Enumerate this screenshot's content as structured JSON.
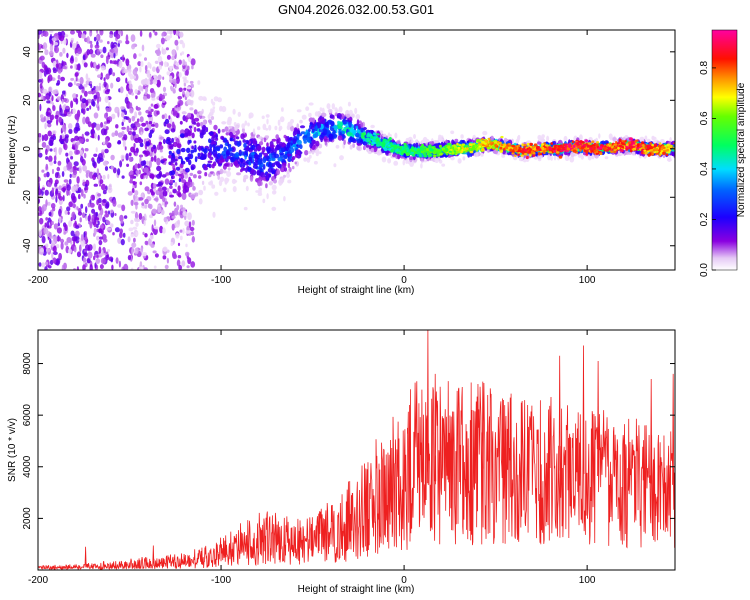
{
  "title": "GN04.2026.032.00.53.G01",
  "colors": {
    "snr_line": "#ee2020",
    "dots_dark": "#4a00d8",
    "dots_faint": "#c9a6f2"
  },
  "chart_data": [
    {
      "type": "heatmap",
      "xlabel": "Height of straight line (km)",
      "ylabel": "Frequency (Hz)",
      "xlim": [
        -200,
        148
      ],
      "ylim": [
        -50,
        49
      ],
      "x_ticks": [
        -200,
        -100,
        0,
        100
      ],
      "y_ticks": [
        -40,
        -20,
        0,
        20,
        40
      ],
      "x_tick_labels": [
        "-200",
        "-100",
        "0",
        "100"
      ],
      "y_tick_labels": [
        "-40",
        "-20",
        "0",
        "20",
        "40"
      ],
      "colorbar": {
        "label": "Normalized spectral amplitude",
        "range": [
          0,
          0.95
        ],
        "ticks": [
          0.0,
          0.2,
          0.4,
          0.6,
          0.8
        ],
        "tick_labels": [
          "0.0",
          "0.2",
          "0.4",
          "0.6",
          "0.8"
        ],
        "colormap": "rainbow (white-violet-blue-cyan-green-yellow-red-magenta)"
      },
      "ridge": {
        "x": [
          -145,
          -125,
          -110,
          -95,
          -85,
          -75,
          -65,
          -55,
          -45,
          -35,
          -25,
          -15,
          -5,
          5,
          15,
          25,
          35,
          45,
          55,
          65,
          75,
          85,
          95,
          105,
          115,
          125,
          135,
          145
        ],
        "freq": [
          0,
          -1,
          0,
          0,
          -3,
          -6,
          -2,
          4,
          8,
          9,
          6,
          3,
          0,
          -1,
          -1,
          0,
          0,
          2,
          1,
          -1,
          0,
          0,
          1,
          0,
          1,
          1,
          0,
          0
        ],
        "peak_amplitude": [
          0.15,
          0.2,
          0.25,
          0.28,
          0.3,
          0.3,
          0.3,
          0.35,
          0.4,
          0.45,
          0.5,
          0.5,
          0.5,
          0.55,
          0.6,
          0.65,
          0.7,
          0.75,
          0.8,
          0.85,
          0.85,
          0.9,
          0.9,
          0.9,
          0.85,
          0.9,
          0.85,
          0.8
        ],
        "scatter_halfwidth": [
          45,
          45,
          20,
          12,
          14,
          14,
          12,
          10,
          8,
          8,
          7,
          5,
          4,
          4,
          4,
          4,
          4,
          3,
          3,
          3,
          3,
          3,
          3,
          3,
          3,
          3,
          3,
          3
        ]
      }
    },
    {
      "type": "line",
      "xlabel": "Height of straight line (km)",
      "ylabel": "SNR (10 * v/v)",
      "xlim": [
        -200,
        148
      ],
      "ylim": [
        0,
        9300
      ],
      "x_ticks": [
        -200,
        -100,
        0,
        100
      ],
      "y_ticks": [
        2000,
        4000,
        6000,
        8000
      ],
      "x_tick_labels": [
        "-200",
        "-100",
        "0",
        "100"
      ],
      "y_tick_labels": [
        "2000",
        "4000",
        "6000",
        "8000"
      ],
      "series": [
        {
          "envelope_x": [
            -200,
            -180,
            -160,
            -140,
            -120,
            -110,
            -100,
            -90,
            -80,
            -70,
            -60,
            -50,
            -40,
            -30,
            -20,
            -10,
            0,
            10,
            20,
            30,
            40,
            50,
            60,
            70,
            80,
            90,
            100,
            110,
            120,
            130,
            140,
            148
          ],
          "envelope_mean": [
            80,
            100,
            110,
            140,
            200,
            300,
            450,
            650,
            800,
            850,
            800,
            800,
            1000,
            1300,
            1800,
            2400,
            2900,
            3300,
            3500,
            3700,
            3900,
            4000,
            4000,
            3950,
            3900,
            3800,
            3700,
            3600,
            3500,
            3400,
            3300,
            3300
          ],
          "envelope_peak": [
            160,
            250,
            350,
            550,
            700,
            900,
            1300,
            1800,
            2200,
            2400,
            2300,
            2200,
            2700,
            3500,
            4500,
            5800,
            6800,
            7800,
            7500,
            7400,
            7300,
            7200,
            7000,
            6900,
            6800,
            6600,
            6400,
            6200,
            6000,
            5800,
            5600,
            5400
          ],
          "spikes": [
            {
              "x": -174,
              "y": 900
            },
            {
              "x": -137,
              "y": 950
            },
            {
              "x": 13,
              "y": 9300
            },
            {
              "x": 17,
              "y": 7600
            },
            {
              "x": 43,
              "y": 7300
            },
            {
              "x": 85,
              "y": 8300
            },
            {
              "x": 98,
              "y": 8700
            },
            {
              "x": 106,
              "y": 8100
            },
            {
              "x": 135,
              "y": 7400
            },
            {
              "x": 147,
              "y": 7600
            }
          ]
        }
      ]
    }
  ]
}
